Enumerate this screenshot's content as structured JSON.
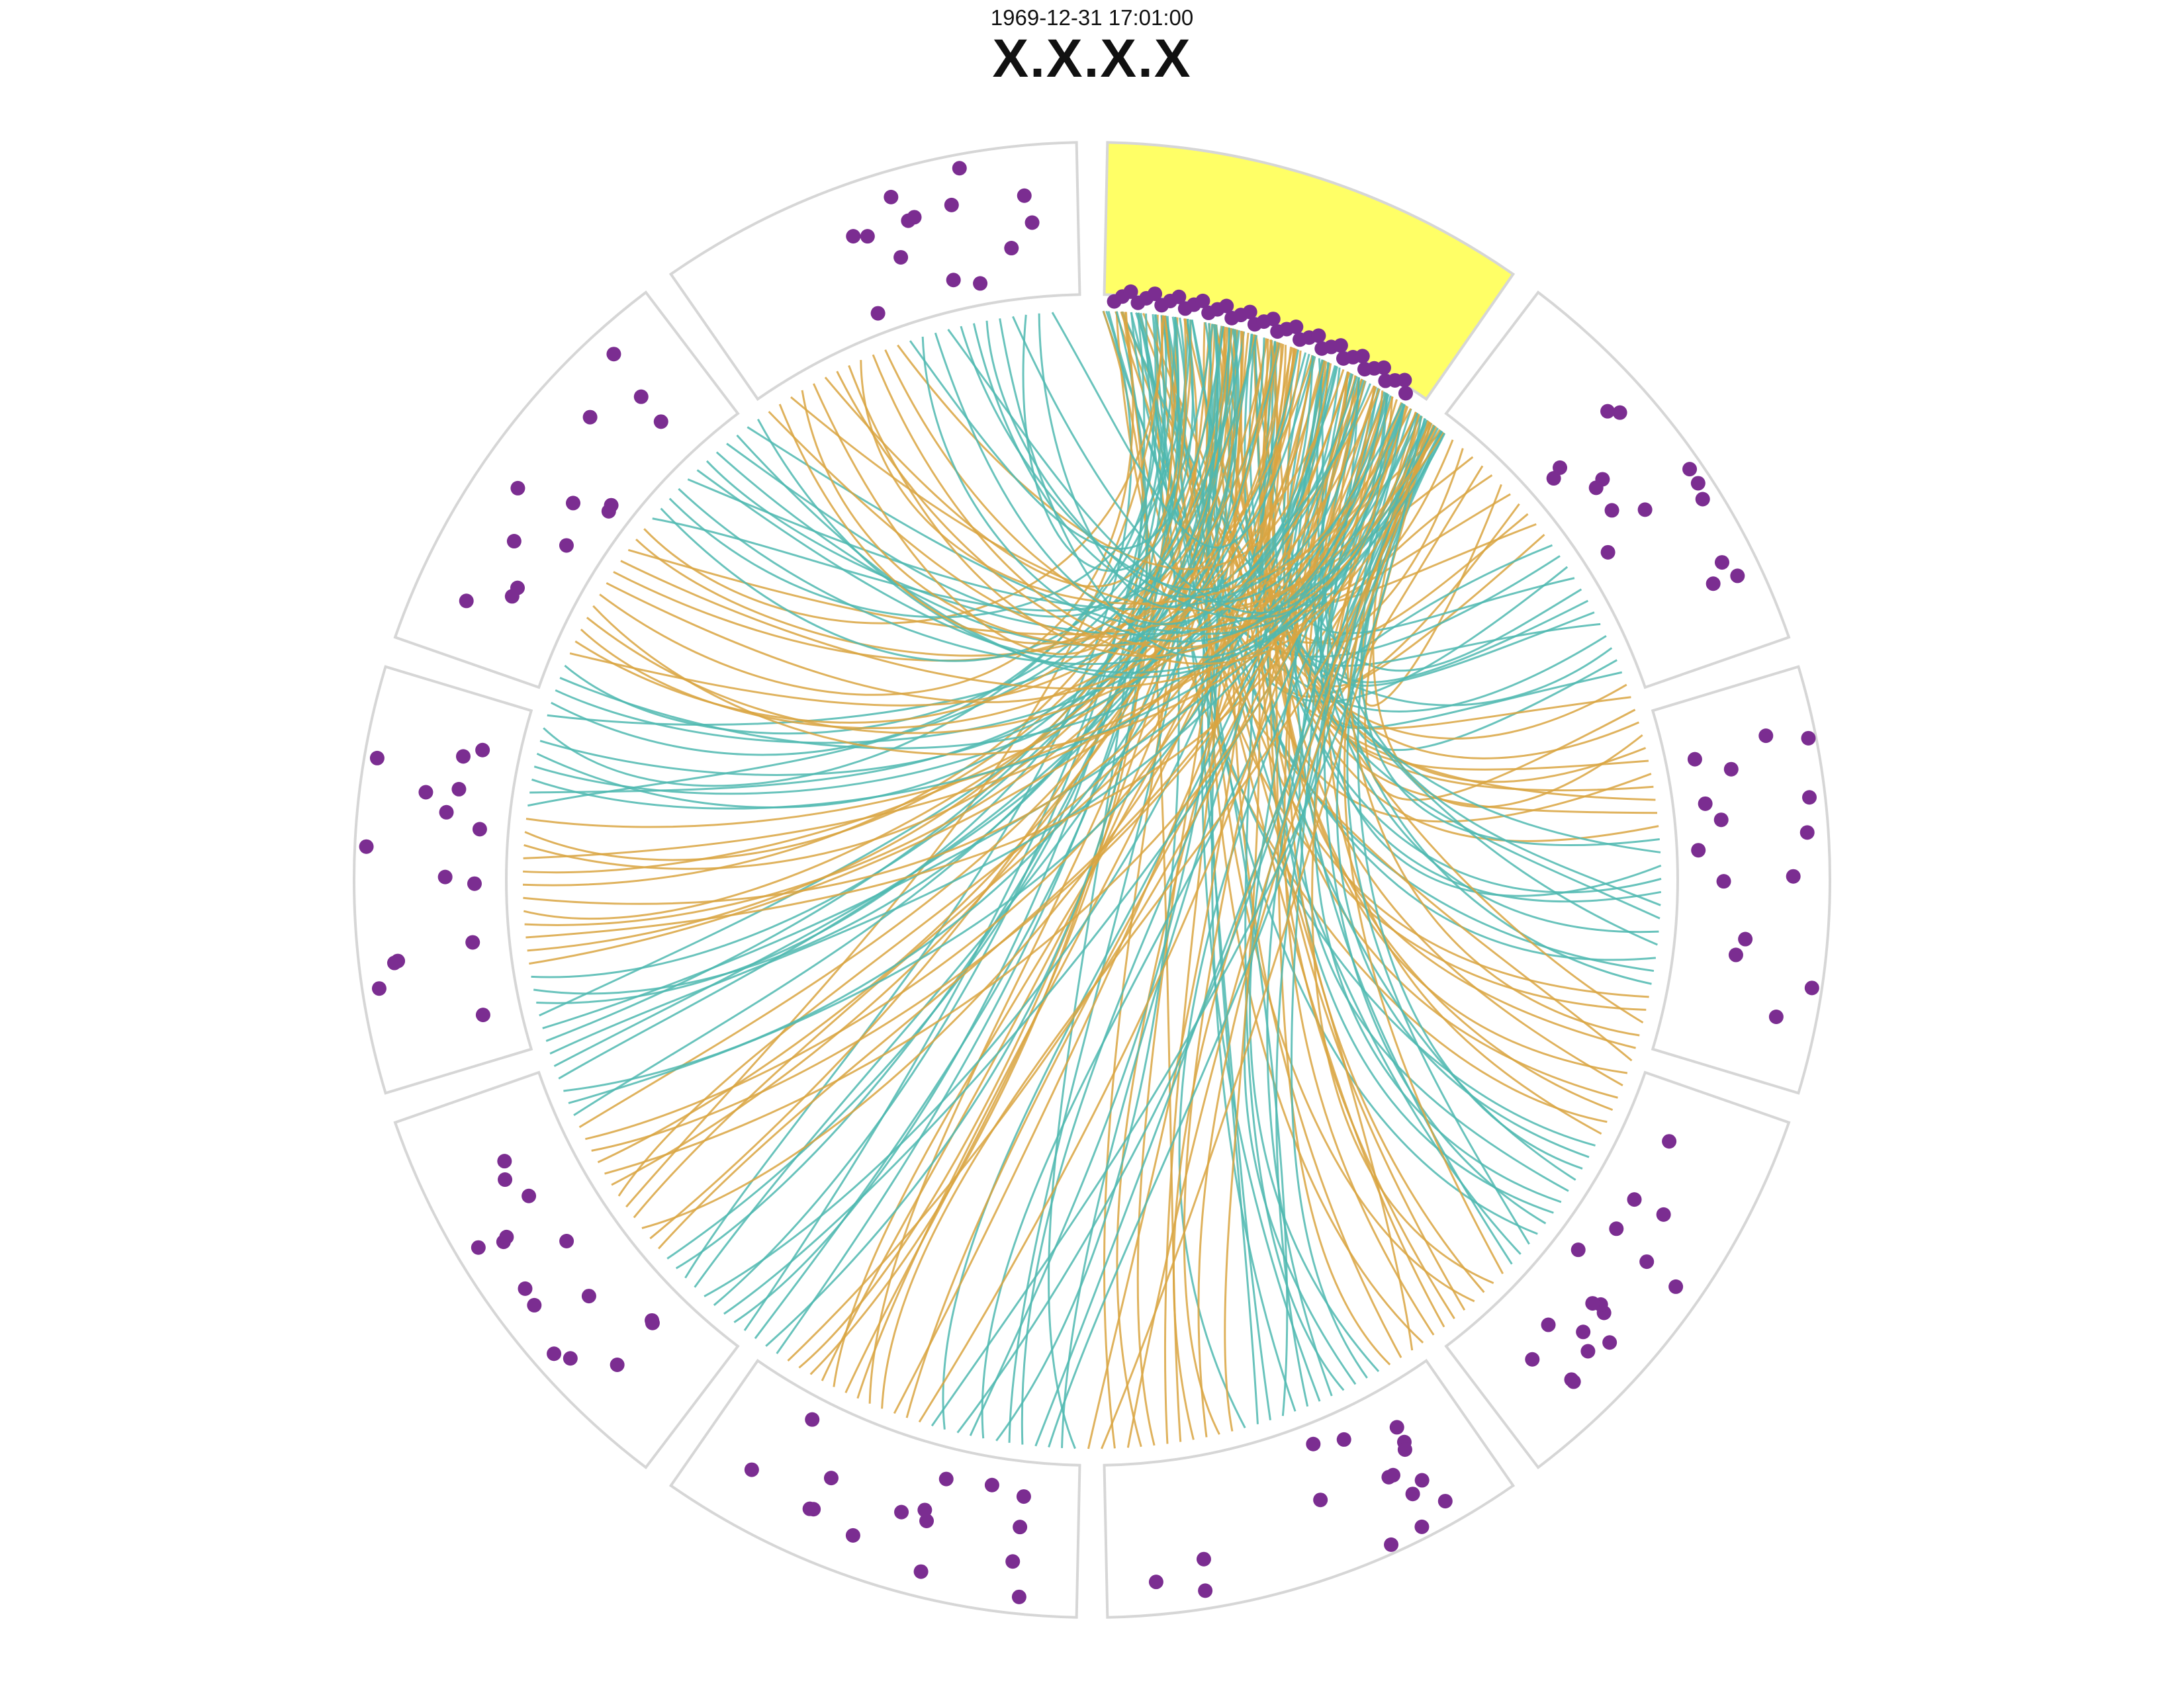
{
  "header": {
    "timestamp": "1969-12-31 17:01:00",
    "title": "X.X.X.X"
  },
  "colors": {
    "background": "#ffffff",
    "sector_stroke": "#d6d6d6",
    "highlight_fill": "#ffff66",
    "dot": "#7b2d91",
    "link_orange": "#d9a441",
    "link_teal": "#4fb8b0"
  },
  "diagram": {
    "type": "circular-network",
    "sector_count": 10,
    "highlighted_sector": 0,
    "sector_dot_counts": [
      40,
      15,
      15,
      17,
      16,
      16,
      15,
      15,
      13,
      14
    ],
    "link_count": 240
  }
}
